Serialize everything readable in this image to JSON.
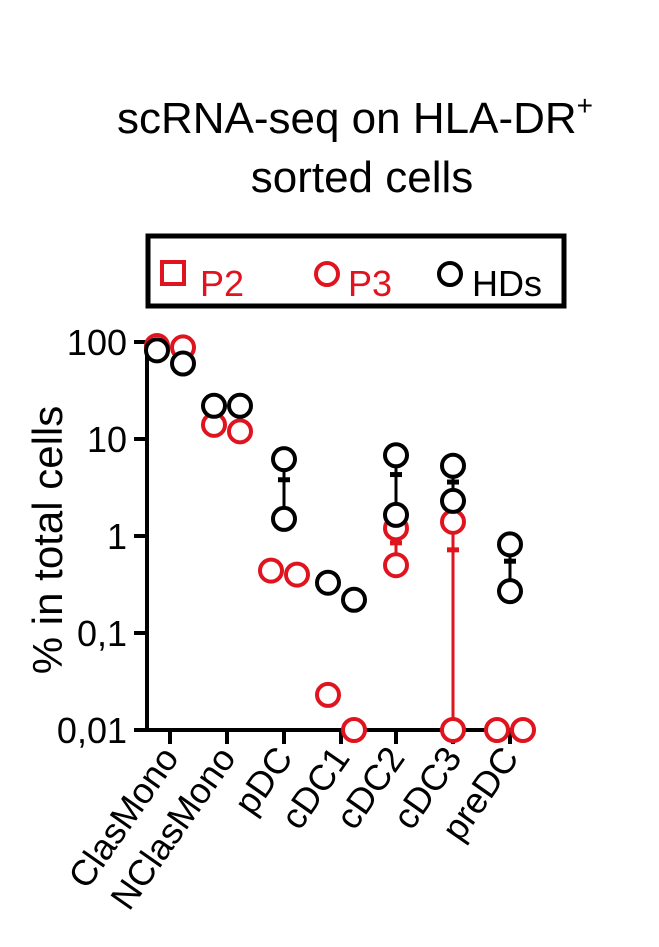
{
  "chart_data": {
    "type": "scatter",
    "title": "scRNA-seq on HLA-DR",
    "title_superscript": "+",
    "title_line2": "sorted cells",
    "ylabel": "% in total cells",
    "xlabel": "",
    "yscale": "log",
    "ylim": [
      0.01,
      100
    ],
    "yticks": [
      100,
      10,
      1,
      0.1,
      0.01
    ],
    "ytick_labels": [
      "100",
      "10",
      "1",
      "0,1",
      "0,01"
    ],
    "categories": [
      "ClasMono",
      "NClasMono",
      "pDC",
      "cDC1",
      "cDC2",
      "cDC3",
      "preDC"
    ],
    "legend": [
      {
        "label": "P2",
        "marker": "square",
        "color": "#e0141e"
      },
      {
        "label": "P3",
        "marker": "circle",
        "color": "#e0141e"
      },
      {
        "label": "HDs",
        "marker": "circle",
        "color": "#000000"
      }
    ],
    "series": [
      {
        "name": "P3",
        "color": "#e0141e",
        "points": [
          {
            "category": "ClasMono",
            "values": [
              91,
              88
            ],
            "mean": null
          },
          {
            "category": "NClasMono",
            "values": [
              14,
              12
            ],
            "mean": null
          },
          {
            "category": "pDC",
            "values": [
              0.44,
              0.4
            ],
            "mean": null
          },
          {
            "category": "cDC1",
            "values": [
              0.023,
              0.01
            ],
            "mean": null
          },
          {
            "category": "cDC2",
            "values": [
              1.2,
              0.5
            ],
            "mean": 0.85
          },
          {
            "category": "cDC3",
            "values": [
              1.4,
              0.01
            ],
            "mean": 0.72
          },
          {
            "category": "preDC",
            "values": [
              0.01,
              0.01
            ],
            "mean": null
          }
        ]
      },
      {
        "name": "HDs",
        "color": "#000000",
        "points": [
          {
            "category": "ClasMono",
            "values": [
              82,
              60
            ],
            "mean": null
          },
          {
            "category": "NClasMono",
            "values": [
              22,
              22
            ],
            "mean": null
          },
          {
            "category": "pDC",
            "values": [
              6.2,
              1.5
            ],
            "mean": 3.8
          },
          {
            "category": "cDC1",
            "values": [
              0.33,
              0.22
            ],
            "mean": null
          },
          {
            "category": "cDC2",
            "values": [
              6.8,
              1.65
            ],
            "mean": 4.3
          },
          {
            "category": "cDC3",
            "values": [
              5.3,
              2.3
            ],
            "mean": 3.6
          },
          {
            "category": "preDC",
            "values": [
              0.82,
              0.27
            ],
            "mean": 0.55
          }
        ]
      }
    ]
  }
}
